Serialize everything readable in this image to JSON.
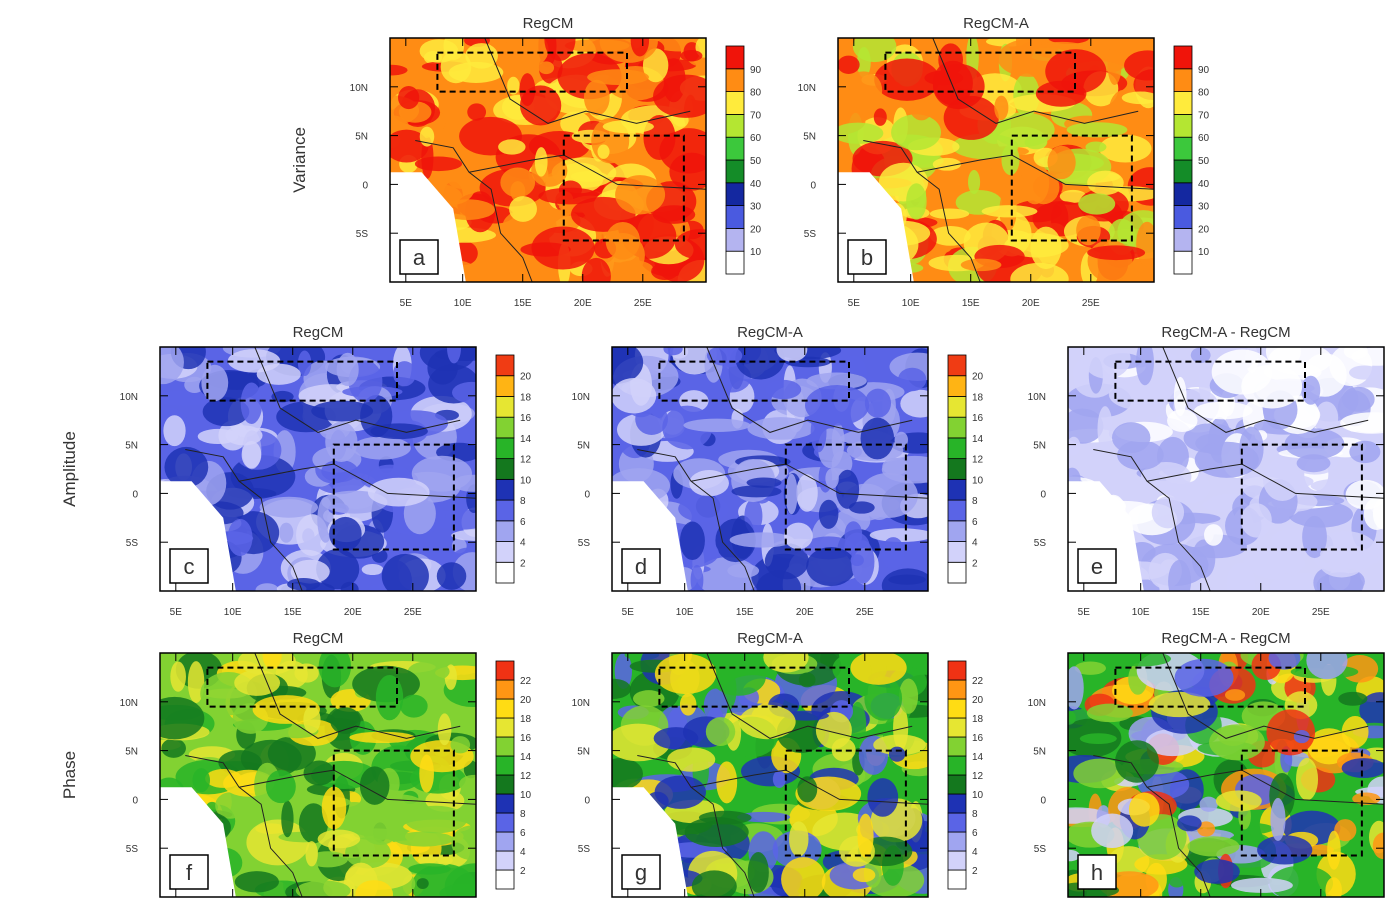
{
  "rows": [
    {
      "label": "Variance",
      "colorbar_labels": [
        "10",
        "20",
        "30",
        "40",
        "50",
        "60",
        "70",
        "80",
        "90"
      ],
      "panels": [
        {
          "title": "RegCM",
          "letter": "a"
        },
        {
          "title": "RegCM-A",
          "letter": "b"
        }
      ]
    },
    {
      "label": "Amplitude",
      "colorbar_labels": [
        "2",
        "4",
        "6",
        "8",
        "10",
        "12",
        "14",
        "16",
        "18",
        "20"
      ],
      "panels": [
        {
          "title": "RegCM",
          "letter": "c"
        },
        {
          "title": "RegCM-A",
          "letter": "d"
        },
        {
          "title": "RegCM-A - RegCM",
          "letter": "e"
        }
      ]
    },
    {
      "label": "Phase",
      "colorbar_labels": [
        "2",
        "4",
        "6",
        "8",
        "10",
        "12",
        "14",
        "16",
        "18",
        "20",
        "22"
      ],
      "panels": [
        {
          "title": "RegCM",
          "letter": "f"
        },
        {
          "title": "RegCM-A",
          "letter": "g"
        },
        {
          "title": "RegCM-A - RegCM",
          "letter": "h"
        }
      ]
    }
  ],
  "lat_ticks": [
    "10N",
    "5N",
    "0",
    "5S"
  ],
  "lon_ticks": [
    "5E",
    "10E",
    "15E",
    "20E",
    "25E"
  ]
}
